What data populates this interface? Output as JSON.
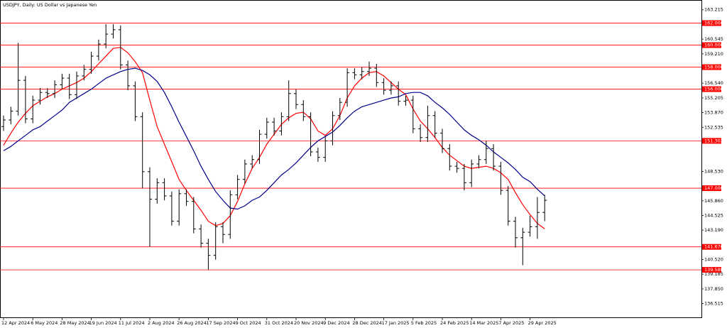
{
  "chart_data": {
    "type": "ohlc",
    "title": "USDJPY, Daily:  US Dollar vs Japanese Yen",
    "categories": [
      "12 Apr 2024",
      null,
      null,
      null,
      "6 May 2024",
      null,
      null,
      null,
      "28 May 2024",
      null,
      null,
      null,
      "19 Jun 2024",
      null,
      null,
      null,
      "11 Jul 2024",
      null,
      null,
      null,
      "2 Aug 2024",
      null,
      null,
      null,
      "26 Aug 2024",
      null,
      null,
      null,
      "17 Sep 2024",
      null,
      null,
      null,
      "9 Oct 2024",
      null,
      null,
      null,
      "31 Oct 2024",
      null,
      null,
      null,
      "20 Nov 2024",
      null,
      null,
      null,
      "9 Dec 2024",
      null,
      null,
      null,
      "28 Dec 2024",
      null,
      null,
      null,
      "17 Jan 2025",
      null,
      null,
      null,
      "5 Feb 2025",
      null,
      null,
      null,
      "24 Feb 2025",
      null,
      null,
      null,
      "14 Mar 2025",
      null,
      null,
      null,
      "7 Apr 2025",
      null,
      null,
      null,
      "29 Apr 2025",
      null,
      null
    ],
    "open": [
      152.6,
      153.2,
      154.0,
      156.8,
      153.3,
      155.0,
      155.7,
      155.6,
      156.4,
      157.0,
      155.5,
      157.2,
      157.8,
      159.0,
      160.1,
      161.0,
      161.4,
      158.2,
      156.3,
      153.5,
      148.5,
      146.0,
      147.5,
      146.3,
      144.0,
      146.5,
      145.8,
      143.3,
      142.0,
      140.9,
      143.5,
      142.8,
      146.4,
      147.8,
      149.2,
      149.6,
      151.9,
      153.0,
      152.2,
      153.5,
      155.6,
      154.6,
      153.5,
      150.3,
      149.8,
      151.3,
      153.6,
      154.8,
      157.5,
      157.3,
      157.6,
      157.9,
      156.6,
      155.9,
      156.3,
      154.9,
      155.0,
      152.4,
      151.6,
      153.6,
      152.0,
      150.6,
      149.0,
      148.8,
      147.5,
      149.2,
      149.6,
      150.6,
      149.0,
      146.8,
      144.0,
      142.5,
      143.0,
      143.5,
      144.8
    ],
    "high": [
      153.6,
      154.4,
      160.2,
      157.2,
      155.4,
      156.1,
      156.1,
      156.8,
      157.4,
      157.4,
      157.6,
      158.2,
      159.4,
      160.5,
      161.9,
      161.9,
      161.8,
      158.6,
      156.7,
      153.9,
      148.9,
      147.9,
      147.9,
      146.7,
      146.9,
      146.9,
      146.2,
      143.7,
      142.4,
      143.9,
      143.9,
      146.8,
      148.2,
      149.6,
      150.0,
      152.3,
      153.4,
      153.4,
      153.9,
      156.8,
      156.0,
      155.0,
      153.9,
      150.7,
      151.7,
      154.0,
      155.2,
      157.9,
      157.9,
      158.0,
      158.5,
      158.3,
      157.0,
      156.7,
      156.7,
      155.4,
      155.4,
      152.8,
      154.5,
      154.0,
      152.4,
      151.0,
      149.4,
      149.2,
      149.6,
      150.0,
      151.3,
      151.0,
      149.4,
      147.2,
      144.4,
      143.4,
      144.5,
      146.2,
      146.4
    ],
    "low": [
      152.2,
      152.8,
      153.6,
      152.9,
      152.9,
      154.6,
      155.2,
      155.2,
      156.0,
      155.1,
      155.1,
      156.8,
      157.4,
      158.6,
      159.7,
      160.6,
      157.8,
      155.9,
      153.1,
      147.0,
      141.7,
      145.6,
      145.9,
      143.6,
      143.6,
      145.4,
      142.9,
      141.6,
      139.6,
      140.5,
      142.0,
      142.4,
      146.0,
      147.4,
      148.8,
      149.2,
      151.5,
      151.8,
      151.8,
      153.1,
      154.2,
      153.1,
      149.9,
      149.4,
      149.4,
      150.9,
      153.2,
      154.4,
      156.9,
      156.9,
      157.2,
      156.2,
      155.5,
      155.5,
      154.5,
      154.5,
      152.0,
      151.2,
      151.2,
      151.6,
      150.2,
      148.6,
      148.4,
      146.8,
      147.1,
      148.8,
      149.2,
      148.6,
      146.4,
      143.6,
      141.6,
      140.0,
      142.6,
      142.4,
      144.0
    ],
    "close": [
      153.2,
      154.0,
      156.8,
      153.3,
      155.0,
      155.7,
      155.6,
      156.4,
      157.0,
      155.5,
      157.2,
      157.8,
      159.0,
      160.1,
      161.0,
      161.4,
      158.2,
      156.3,
      153.5,
      148.5,
      146.0,
      147.5,
      146.3,
      144.0,
      146.5,
      145.8,
      143.3,
      142.0,
      140.9,
      143.5,
      142.8,
      146.4,
      147.8,
      149.2,
      149.6,
      151.9,
      153.0,
      152.2,
      153.5,
      155.6,
      154.6,
      153.5,
      150.3,
      149.8,
      151.3,
      153.6,
      154.8,
      157.5,
      157.3,
      157.6,
      157.9,
      156.6,
      155.9,
      156.3,
      154.9,
      155.0,
      152.4,
      151.6,
      153.6,
      152.0,
      150.6,
      149.0,
      148.8,
      147.5,
      149.2,
      149.6,
      150.6,
      149.0,
      146.8,
      144.0,
      142.5,
      143.0,
      143.5,
      144.8,
      145.9
    ],
    "color": "#000000",
    "series": [
      {
        "color": "#ff0000",
        "values": [
          150.9,
          152.0,
          153.0,
          153.8,
          154.5,
          154.9,
          155.3,
          155.6,
          156.0,
          156.3,
          156.6,
          157.0,
          157.6,
          158.3,
          159.0,
          159.7,
          159.8,
          159.3,
          158.5,
          157.5,
          155.0,
          152.6,
          151.0,
          149.4,
          147.8,
          146.8,
          145.9,
          145.0,
          144.0,
          143.6,
          143.8,
          144.5,
          145.8,
          147.4,
          148.8,
          149.8,
          151.0,
          151.9,
          152.8,
          153.4,
          153.8,
          153.9,
          153.3,
          152.2,
          151.8,
          152.4,
          153.6,
          155.2,
          156.3,
          157.0,
          157.5,
          157.6,
          157.2,
          156.6,
          156.0,
          155.5,
          154.2,
          153.1,
          152.4,
          151.6,
          150.7,
          150.0,
          149.5,
          149.0,
          148.8,
          148.9,
          149.0,
          148.8,
          148.4,
          147.8,
          146.6,
          145.5,
          144.6,
          143.8,
          143.3
        ]
      },
      {
        "color": "#00008b",
        "values": [
          150.4,
          150.8,
          151.3,
          151.8,
          152.3,
          152.6,
          153.1,
          153.6,
          154.1,
          154.8,
          155.2,
          155.6,
          156.0,
          156.5,
          157.0,
          157.3,
          157.6,
          157.8,
          157.9,
          157.7,
          157.3,
          156.7,
          155.7,
          154.4,
          153.0,
          151.7,
          150.4,
          149.0,
          147.8,
          146.7,
          145.9,
          145.2,
          145.1,
          145.4,
          145.9,
          146.2,
          146.8,
          147.5,
          148.2,
          148.7,
          149.3,
          150.0,
          150.7,
          151.3,
          151.7,
          152.1,
          152.7,
          153.4,
          154.0,
          154.4,
          154.6,
          154.8,
          155.0,
          155.2,
          155.3,
          155.6,
          155.7,
          155.7,
          155.4,
          154.8,
          154.3,
          153.7,
          153.0,
          152.3,
          151.8,
          151.4,
          150.9,
          150.3,
          149.8,
          149.3,
          148.7,
          148.0,
          147.6,
          146.9,
          146.3
        ]
      }
    ],
    "levels": [
      {
        "value": 162,
        "label": "162.000"
      },
      {
        "value": 160,
        "label": "160.000"
      },
      {
        "value": 158,
        "label": "158.000"
      },
      {
        "value": 156,
        "label": "156.000"
      },
      {
        "value": 151.302,
        "label": "151.302"
      },
      {
        "value": 147,
        "label": "147.000"
      },
      {
        "value": 141.67,
        "label": "141.670"
      },
      {
        "value": 139.58,
        "label": "139.580"
      }
    ],
    "level_color": "#ff0000",
    "ylim": [
      135.2,
      164.1
    ],
    "yticks": [
      163.215,
      160.545,
      {
        "value": 159.21,
        "label": "159.210"
      },
      {
        "value": 156.54,
        "label": "156.540"
      },
      155.205,
      {
        "value": 153.87,
        "label": "153.870"
      },
      152.535,
      {
        "value": 148.53,
        "label": "148.530"
      },
      {
        "value": 145.86,
        "label": "145.860"
      },
      144.525,
      {
        "value": 143.19,
        "label": "143.190"
      },
      {
        "value": 140.52,
        "label": "140.520"
      },
      139.185,
      {
        "value": 137.85,
        "label": "137.850"
      },
      136.515
    ],
    "grid": false
  }
}
